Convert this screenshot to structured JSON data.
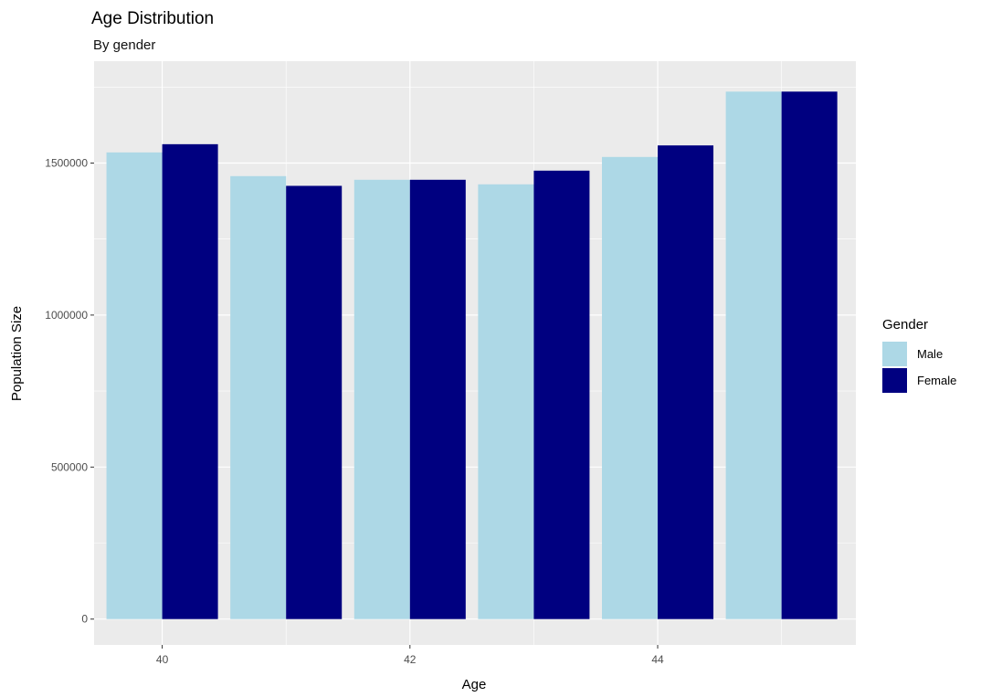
{
  "chart_data": {
    "type": "bar",
    "title": "Age Distribution",
    "subtitle": "By gender",
    "xlabel": "Age",
    "ylabel": "Population Size",
    "x": [
      40,
      41,
      42,
      43,
      44,
      45
    ],
    "x_ticks": [
      40,
      42,
      44
    ],
    "x_tick_labels": [
      "40",
      "42",
      "44"
    ],
    "xlim": [
      39.45,
      45.6
    ],
    "ylim": [
      -85000,
      1835000
    ],
    "y_ticks": [
      0,
      500000,
      1000000,
      1500000
    ],
    "y_tick_labels": [
      "0",
      "500000",
      "1000000",
      "1500000"
    ],
    "grid": true,
    "legend": {
      "title": "Gender",
      "placement": "right"
    },
    "series": [
      {
        "name": "Male",
        "color": "#add8e6",
        "values": [
          1535000,
          1457000,
          1445000,
          1430000,
          1520000,
          1735000
        ]
      },
      {
        "name": "Female",
        "color": "#000080",
        "values": [
          1562000,
          1425000,
          1445000,
          1475000,
          1558000,
          1735000
        ]
      }
    ],
    "colors": {
      "panel": "#ebebeb",
      "grid": "#ffffff",
      "tick": "#333333"
    }
  }
}
